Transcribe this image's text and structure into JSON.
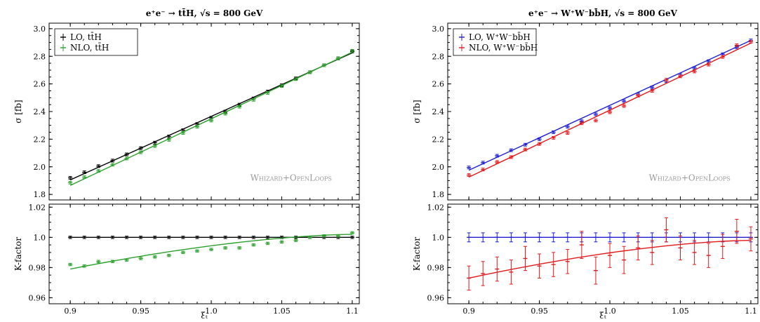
{
  "chart_data": [
    {
      "type": "scatter",
      "title": "e⁺e⁻ → tt̄H,   √s = 800 GeV",
      "watermark": "Whizard+OpenLoops",
      "x": [
        0.9,
        0.91,
        0.92,
        0.93,
        0.94,
        0.95,
        0.96,
        0.97,
        0.98,
        0.99,
        1.0,
        1.01,
        1.02,
        1.03,
        1.04,
        1.05,
        1.06,
        1.07,
        1.08,
        1.09,
        1.1
      ],
      "xlabel": "ξₜ",
      "xticks": [
        "0.9",
        "0.95",
        "1.0",
        "1.05",
        "1.1"
      ],
      "xlim": [
        0.885,
        1.105
      ],
      "top": {
        "ylabel": "σ  [fb]",
        "ylim": [
          1.76,
          3.04
        ],
        "yticks": [
          "1.8",
          "2.0",
          "2.2",
          "2.4",
          "2.6",
          "2.8",
          "3.0"
        ],
        "legend_position": "top-left",
        "series": [
          {
            "name": "LO, tt̄H",
            "color": "#000000",
            "values": [
              1.92,
              1.96,
              2.005,
              2.045,
              2.09,
              2.135,
              2.175,
              2.22,
              2.265,
              2.31,
              2.355,
              2.4,
              2.45,
              2.495,
              2.545,
              2.59,
              2.64,
              2.685,
              2.735,
              2.785,
              2.835
            ],
            "fit": [
              1.905,
              2.825
            ]
          },
          {
            "name": "NLO, tt̄H",
            "color": "#2ca02c",
            "values": [
              1.885,
              1.925,
              1.97,
              2.015,
              2.06,
              2.105,
              2.15,
              2.195,
              2.245,
              2.29,
              2.335,
              2.385,
              2.435,
              2.485,
              2.535,
              2.585,
              2.635,
              2.685,
              2.735,
              2.785,
              2.84
            ],
            "fit": [
              1.865,
              2.83
            ]
          }
        ]
      },
      "bottom": {
        "ylabel": "K-factor",
        "ylim": [
          0.956,
          1.022
        ],
        "yticks": [
          "0.96",
          "0.98",
          "1.0",
          "1.02"
        ],
        "series": [
          {
            "name": "LO",
            "color": "#000000",
            "values": [
              1.0,
              1.0,
              1.0,
              1.0,
              1.0,
              1.0,
              1.0,
              1.0,
              1.0,
              1.0,
              1.0,
              1.0,
              1.0,
              1.0,
              1.0,
              1.0,
              1.0,
              1.0,
              1.0,
              1.0,
              1.0
            ],
            "fit_curve": [
              1.0,
              1.0
            ]
          },
          {
            "name": "NLO",
            "color": "#2ca02c",
            "values": [
              0.982,
              0.981,
              0.984,
              0.984,
              0.985,
              0.986,
              0.987,
              0.988,
              0.99,
              0.991,
              0.992,
              0.993,
              0.993,
              0.995,
              0.996,
              0.997,
              0.998,
              1.0,
              1.001,
              1.001,
              1.003
            ],
            "fit_curve": [
              0.979,
              1.002
            ]
          }
        ]
      }
    },
    {
      "type": "scatter",
      "title": "e⁺e⁻ → W⁺W⁻bb̄H,   √s = 800 GeV",
      "watermark": "Whizard+OpenLoops",
      "x": [
        0.9,
        0.91,
        0.92,
        0.93,
        0.94,
        0.95,
        0.96,
        0.97,
        0.98,
        0.99,
        1.0,
        1.01,
        1.02,
        1.03,
        1.04,
        1.05,
        1.06,
        1.07,
        1.08,
        1.09,
        1.1
      ],
      "xlabel": "ξₜ",
      "xticks": [
        "0.9",
        "0.95",
        "1.0",
        "1.05",
        "1.1"
      ],
      "xlim": [
        0.885,
        1.105
      ],
      "top": {
        "ylabel": "σ  [fb]",
        "ylim": [
          1.76,
          3.04
        ],
        "yticks": [
          "1.8",
          "2.0",
          "2.2",
          "2.4",
          "2.6",
          "2.8",
          "3.0"
        ],
        "legend_position": "top-left",
        "series": [
          {
            "name": "LO, W⁺W⁻bb̄H",
            "color": "#1f1fd0",
            "values": [
              1.995,
              2.03,
              2.08,
              2.12,
              2.16,
              2.2,
              2.25,
              2.29,
              2.33,
              2.38,
              2.425,
              2.475,
              2.525,
              2.575,
              2.62,
              2.665,
              2.715,
              2.765,
              2.815,
              2.865,
              2.915
            ],
            "fit": [
              1.975,
              2.915
            ]
          },
          {
            "name": "NLO, W⁺W⁻bb̄H",
            "color": "#e31a1c",
            "values": [
              1.94,
              1.98,
              2.035,
              2.07,
              2.125,
              2.165,
              2.21,
              2.245,
              2.315,
              2.335,
              2.395,
              2.44,
              2.515,
              2.55,
              2.63,
              2.655,
              2.69,
              2.74,
              2.795,
              2.88,
              2.905
            ],
            "fit": [
              1.925,
              2.895
            ]
          }
        ]
      },
      "bottom": {
        "ylabel": "K-factor",
        "ylim": [
          0.956,
          1.022
        ],
        "yticks": [
          "0.96",
          "0.98",
          "1.0",
          "1.02"
        ],
        "series": [
          {
            "name": "LO",
            "color": "#1f1fd0",
            "values": [
              1.0,
              1.0,
              1.0,
              1.0,
              1.0,
              1.0,
              1.0,
              1.0,
              1.0,
              1.0,
              1.0,
              1.0,
              1.0,
              1.0,
              1.0,
              1.0,
              1.0,
              1.0,
              1.0,
              1.0,
              1.0
            ],
            "errors": [
              0.003,
              0.003,
              0.003,
              0.003,
              0.003,
              0.003,
              0.003,
              0.003,
              0.003,
              0.003,
              0.003,
              0.003,
              0.003,
              0.003,
              0.003,
              0.003,
              0.003,
              0.003,
              0.003,
              0.003,
              0.003
            ],
            "fit_curve": [
              1.0,
              1.0
            ]
          },
          {
            "name": "NLO",
            "color": "#e31a1c",
            "values": [
              0.973,
              0.976,
              0.979,
              0.977,
              0.986,
              0.981,
              0.982,
              0.984,
              0.995,
              0.978,
              0.988,
              0.985,
              0.993,
              0.99,
              1.005,
              0.993,
              0.99,
              0.988,
              0.994,
              1.004,
              0.999
            ],
            "errors": [
              0.008,
              0.008,
              0.008,
              0.008,
              0.008,
              0.008,
              0.008,
              0.008,
              0.009,
              0.009,
              0.008,
              0.009,
              0.008,
              0.008,
              0.008,
              0.008,
              0.008,
              0.008,
              0.008,
              0.008,
              0.008
            ],
            "fit_curve": [
              0.973,
              0.998
            ]
          }
        ]
      }
    }
  ]
}
